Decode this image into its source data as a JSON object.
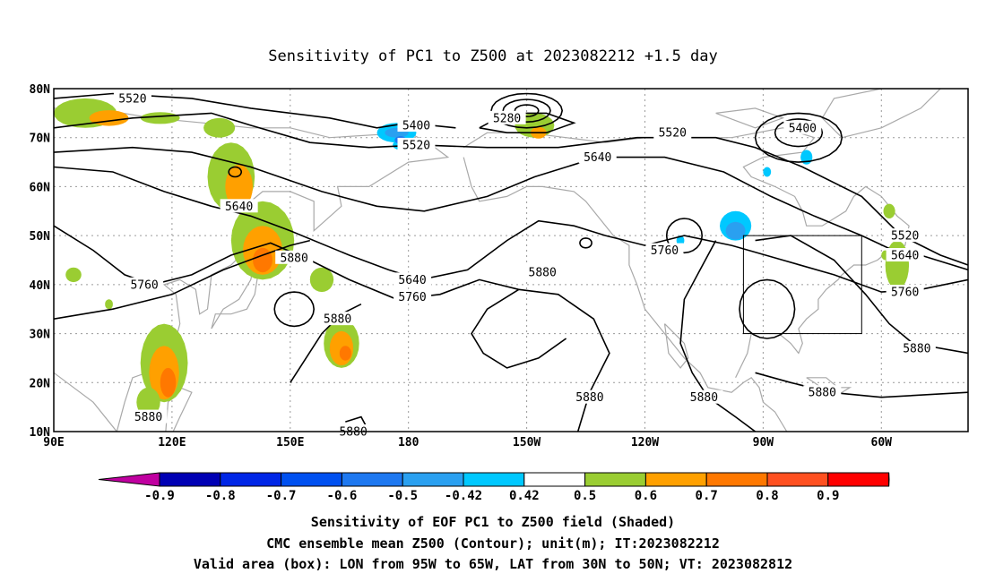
{
  "chart_data": {
    "type": "heatmap",
    "title": "Sensitivity of PC1 to Z500 at 2023082212 +1.5 day",
    "x_ticks": [
      "90E",
      "120E",
      "150E",
      "180",
      "150W",
      "120W",
      "90W",
      "60W"
    ],
    "x_values": [
      90,
      120,
      150,
      180,
      210,
      240,
      270,
      300
    ],
    "y_ticks": [
      "80N",
      "70N",
      "60N",
      "50N",
      "40N",
      "30N",
      "20N",
      "10N"
    ],
    "y_values": [
      80,
      70,
      60,
      50,
      40,
      30,
      20,
      10
    ],
    "xlim": [
      90,
      322
    ],
    "ylim": [
      10,
      80
    ],
    "grid": true,
    "colorbar": {
      "labels": [
        "-0.9",
        "-0.8",
        "-0.7",
        "-0.6",
        "-0.5",
        "-0.42",
        "0.42",
        "0.5",
        "0.6",
        "0.7",
        "0.8",
        "0.9"
      ],
      "colors": [
        "#c000a0",
        "#0000b4",
        "#0026e6",
        "#0050f0",
        "#1e78f0",
        "#2aa0f0",
        "#00c8ff",
        "#ffffff",
        "#9acd32",
        "#ffa000",
        "#ff7800",
        "#ff5020",
        "#ff0000",
        "#ff90c0"
      ]
    },
    "contour_labels": [
      {
        "text": "5520",
        "lon": 110,
        "lat": 78
      },
      {
        "text": "5400",
        "lon": 182,
        "lat": 72.5
      },
      {
        "text": "5280",
        "lon": 205,
        "lat": 74
      },
      {
        "text": "5520",
        "lon": 182,
        "lat": 68.5
      },
      {
        "text": "5520",
        "lon": 247,
        "lat": 71
      },
      {
        "text": "5400",
        "lon": 280,
        "lat": 72
      },
      {
        "text": "5640",
        "lon": 228,
        "lat": 66
      },
      {
        "text": "5640",
        "lon": 137,
        "lat": 56
      },
      {
        "text": "5880",
        "lon": 151,
        "lat": 45.5
      },
      {
        "text": "5640",
        "lon": 181,
        "lat": 41
      },
      {
        "text": "5760",
        "lon": 181,
        "lat": 37.5
      },
      {
        "text": "5880",
        "lon": 214,
        "lat": 42.5
      },
      {
        "text": "5760",
        "lon": 245,
        "lat": 47
      },
      {
        "text": "5520",
        "lon": 306,
        "lat": 50
      },
      {
        "text": "5640",
        "lon": 306,
        "lat": 46
      },
      {
        "text": "5760",
        "lon": 306,
        "lat": 38.5
      },
      {
        "text": "5880",
        "lon": 309,
        "lat": 27
      },
      {
        "text": "5760",
        "lon": 113,
        "lat": 40
      },
      {
        "text": "5880",
        "lon": 162,
        "lat": 33
      },
      {
        "text": "5880",
        "lon": 114,
        "lat": 13
      },
      {
        "text": "5880",
        "lon": 166,
        "lat": 10
      },
      {
        "text": "5880",
        "lon": 226,
        "lat": 17
      },
      {
        "text": "5880",
        "lon": 255,
        "lat": 17
      },
      {
        "text": "5880",
        "lon": 285,
        "lat": 18
      }
    ],
    "valid_box": {
      "lon": [
        265,
        295
      ],
      "lat": [
        30,
        50
      ]
    },
    "caption": [
      "Sensitivity of EOF PC1 to Z500 field (Shaded)",
      "CMC ensemble mean Z500 (Contour); unit(m); IT:2023082212",
      "Valid area (box): LON from 95W to 65W, LAT from 30N to 50N; VT: 2023082812"
    ]
  }
}
